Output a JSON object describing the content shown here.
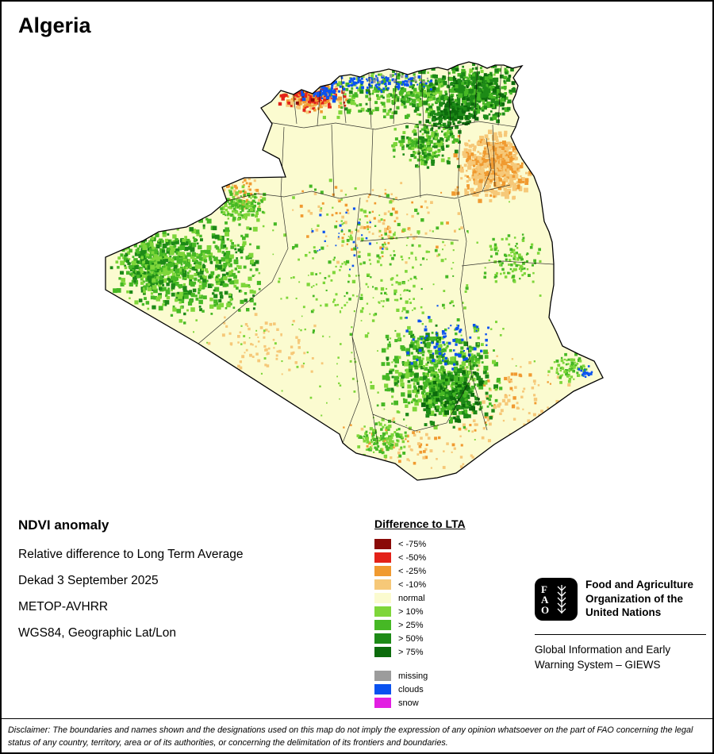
{
  "title": "Algeria",
  "info": {
    "heading": "NDVI anomaly",
    "lines": [
      "Relative difference to Long Term Average",
      "Dekad 3 September 2025",
      "METOP-AVHRR",
      "WGS84, Geographic Lat/Lon"
    ]
  },
  "legend": {
    "title": "Difference to LTA",
    "items": [
      {
        "label": "< -75%",
        "color": "#8a0a07"
      },
      {
        "label": "< -50%",
        "color": "#e32219"
      },
      {
        "label": "< -25%",
        "color": "#f09a30"
      },
      {
        "label": "< -10%",
        "color": "#f6c878"
      },
      {
        "label": "normal",
        "color": "#fbfbd0"
      },
      {
        "label": "> 10%",
        "color": "#7ed63a"
      },
      {
        "label": "> 25%",
        "color": "#46b825"
      },
      {
        "label": "> 50%",
        "color": "#1d8a17"
      },
      {
        "label": "> 75%",
        "color": "#0c6b0c"
      }
    ],
    "extra_items": [
      {
        "label": "missing",
        "color": "#9c9c9c"
      },
      {
        "label": "clouds",
        "color": "#0a52f0"
      },
      {
        "label": "snow",
        "color": "#e21ee2"
      }
    ]
  },
  "fao": {
    "logo_letters": [
      "F",
      "A",
      "O"
    ],
    "org_name": "Food and Agriculture Organization of the United Nations",
    "giews": "Global Information and Early Warning System – GIEWS"
  },
  "disclaimer": "Disclaimer: The boundaries and names shown and the designations used on this map do not imply the expression of any opinion whatsoever on the part of FAO concerning the legal status of any country, territory, area or of its authorities, or concerning the delimitation of its frontiers and boundaries."
}
